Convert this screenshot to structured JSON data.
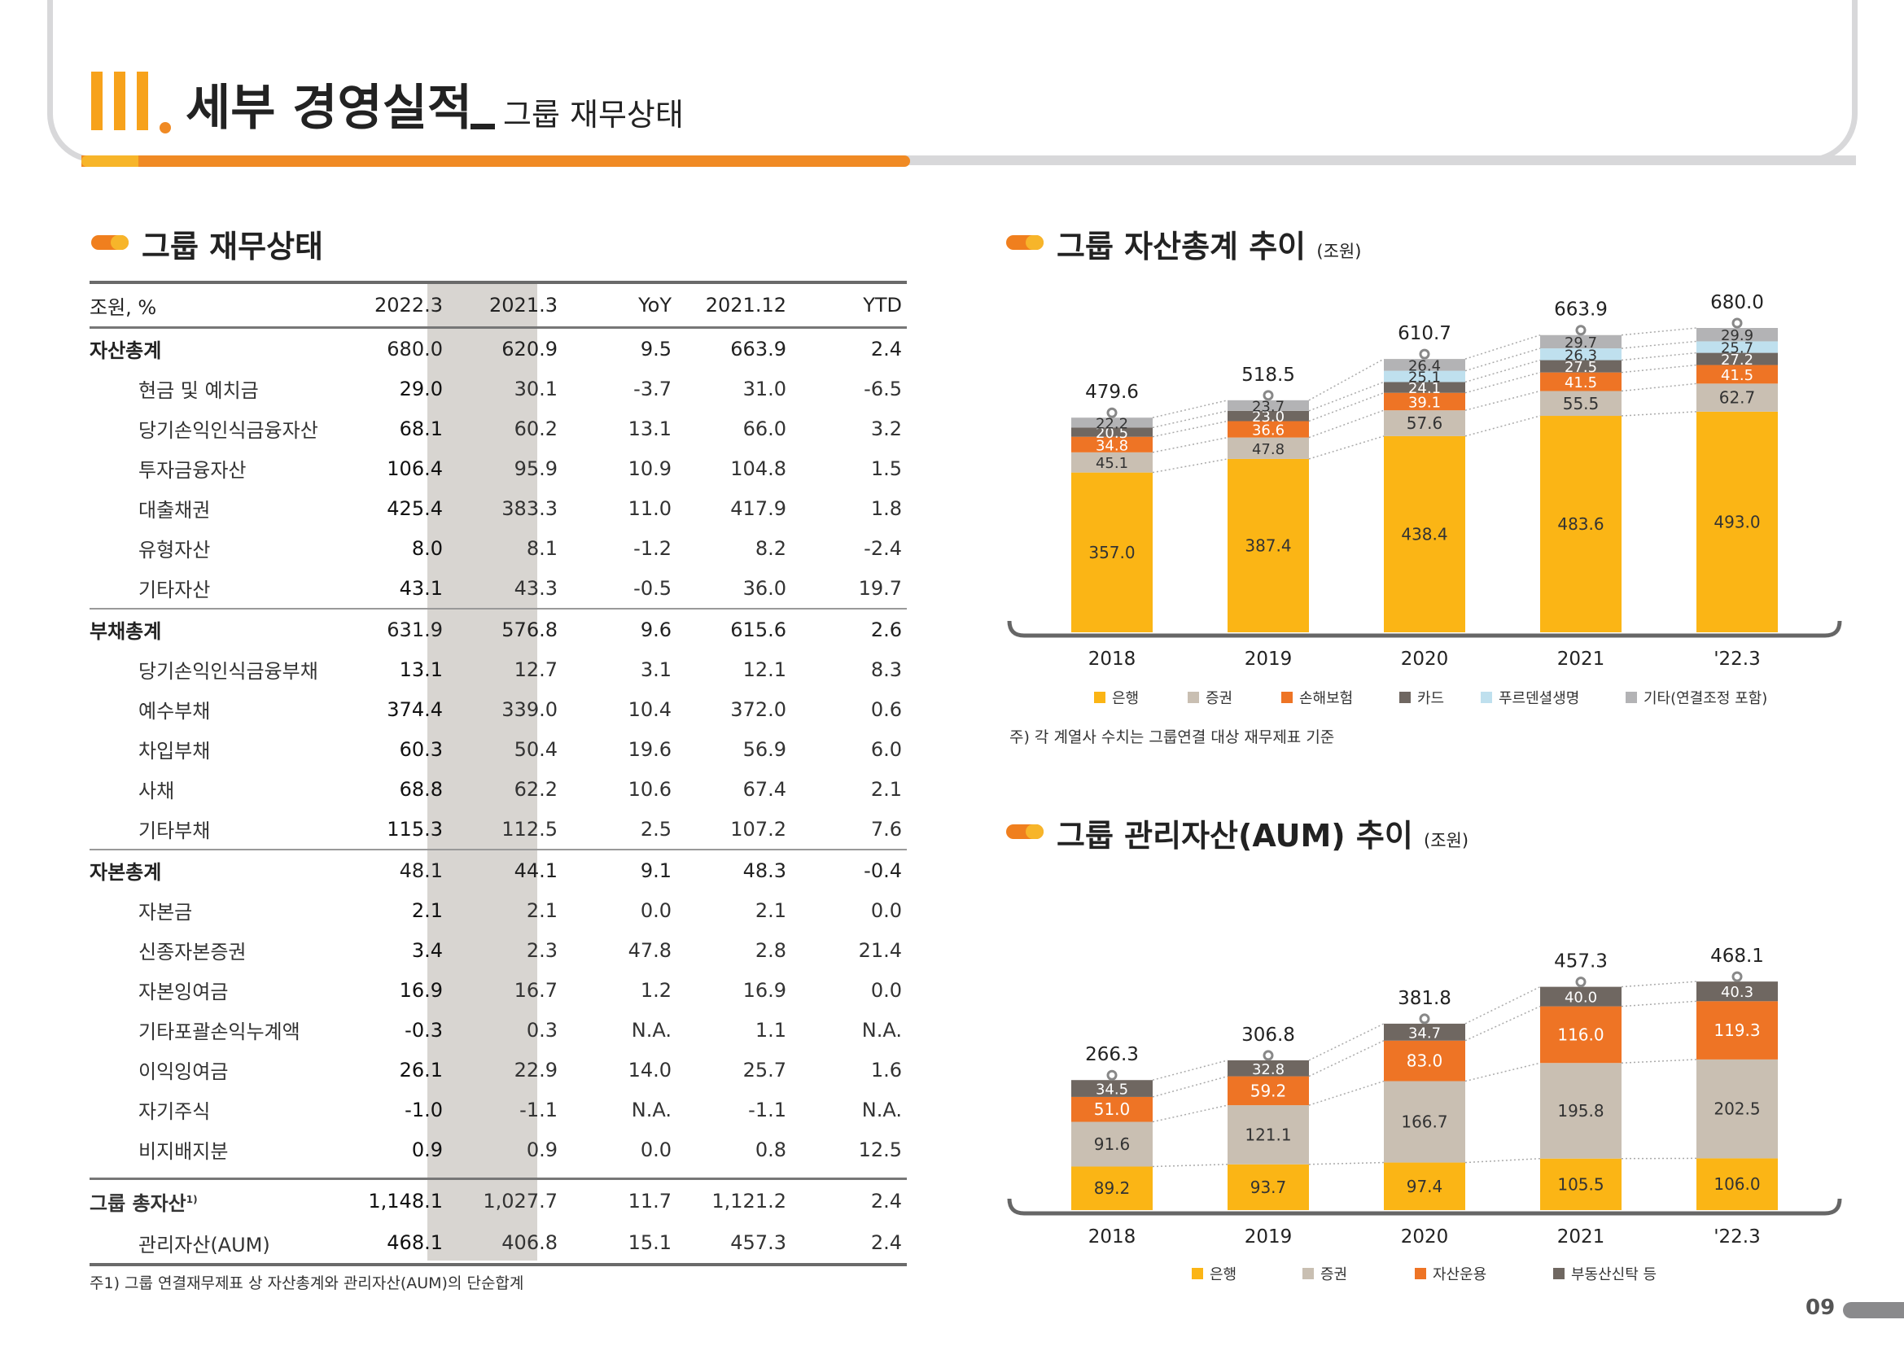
{
  "header": {
    "title_main": "세부 경영실적",
    "title_sub": "그룹 재무상태"
  },
  "table_section": {
    "title": "그룹 재무상태",
    "columns": [
      "조원, %",
      "2022.3",
      "2021.3",
      "YoY",
      "2021.12",
      "YTD"
    ],
    "rows": [
      {
        "label": "자산총계",
        "type": "total",
        "values": [
          "680.0",
          "620.9",
          "9.5",
          "663.9",
          "2.4"
        ]
      },
      {
        "label": "현금 및 예치금",
        "type": "sub",
        "values": [
          "29.0",
          "30.1",
          "-3.7",
          "31.0",
          "-6.5"
        ]
      },
      {
        "label": "당기손익인식금융자산",
        "type": "sub",
        "values": [
          "68.1",
          "60.2",
          "13.1",
          "66.0",
          "3.2"
        ]
      },
      {
        "label": "투자금융자산",
        "type": "sub",
        "values": [
          "106.4",
          "95.9",
          "10.9",
          "104.8",
          "1.5"
        ]
      },
      {
        "label": "대출채권",
        "type": "sub",
        "values": [
          "425.4",
          "383.3",
          "11.0",
          "417.9",
          "1.8"
        ]
      },
      {
        "label": "유형자산",
        "type": "sub",
        "values": [
          "8.0",
          "8.1",
          "-1.2",
          "8.2",
          "-2.4"
        ]
      },
      {
        "label": "기타자산",
        "type": "sub",
        "values": [
          "43.1",
          "43.3",
          "-0.5",
          "36.0",
          "19.7"
        ]
      },
      {
        "label": "부채총계",
        "type": "total",
        "values": [
          "631.9",
          "576.8",
          "9.6",
          "615.6",
          "2.6"
        ]
      },
      {
        "label": "당기손익인식금융부채",
        "type": "sub",
        "values": [
          "13.1",
          "12.7",
          "3.1",
          "12.1",
          "8.3"
        ]
      },
      {
        "label": "예수부채",
        "type": "sub",
        "values": [
          "374.4",
          "339.0",
          "10.4",
          "372.0",
          "0.6"
        ]
      },
      {
        "label": "차입부채",
        "type": "sub",
        "values": [
          "60.3",
          "50.4",
          "19.6",
          "56.9",
          "6.0"
        ]
      },
      {
        "label": "사채",
        "type": "sub",
        "values": [
          "68.8",
          "62.2",
          "10.6",
          "67.4",
          "2.1"
        ]
      },
      {
        "label": "기타부채",
        "type": "sub",
        "values": [
          "115.3",
          "112.5",
          "2.5",
          "107.2",
          "7.6"
        ]
      },
      {
        "label": "자본총계",
        "type": "total",
        "values": [
          "48.1",
          "44.1",
          "9.1",
          "48.3",
          "-0.4"
        ]
      },
      {
        "label": "자본금",
        "type": "sub",
        "values": [
          "2.1",
          "2.1",
          "0.0",
          "2.1",
          "0.0"
        ]
      },
      {
        "label": "신종자본증권",
        "type": "sub",
        "values": [
          "3.4",
          "2.3",
          "47.8",
          "2.8",
          "21.4"
        ]
      },
      {
        "label": "자본잉여금",
        "type": "sub",
        "values": [
          "16.9",
          "16.7",
          "1.2",
          "16.9",
          "0.0"
        ]
      },
      {
        "label": "기타포괄손익누계액",
        "type": "sub",
        "values": [
          "-0.3",
          "0.3",
          "N.A.",
          "1.1",
          "N.A."
        ]
      },
      {
        "label": "이익잉여금",
        "type": "sub",
        "values": [
          "26.1",
          "22.9",
          "14.0",
          "25.7",
          "1.6"
        ]
      },
      {
        "label": "자기주식",
        "type": "sub",
        "values": [
          "-1.0",
          "-1.1",
          "N.A.",
          "-1.1",
          "N.A."
        ]
      },
      {
        "label": "비지배지분",
        "type": "sub",
        "values": [
          "0.9",
          "0.9",
          "0.0",
          "0.8",
          "12.5"
        ]
      }
    ],
    "footer_rows": [
      {
        "label": "그룹 총자산",
        "sup": "1)",
        "values": [
          "1,148.1",
          "1,027.7",
          "11.7",
          "1,121.2",
          "2.4"
        ]
      },
      {
        "label": "관리자산(AUM)",
        "values": [
          "468.1",
          "406.8",
          "15.1",
          "457.3",
          "2.4"
        ]
      }
    ],
    "note": "주1) 그룹 연결재무제표 상 자산총계와 관리자산(AUM)의 단순합계"
  },
  "chart_data": [
    {
      "type": "bar",
      "stacked": true,
      "title": "그룹 자산총계 추이",
      "unit": "(조원)",
      "categories": [
        "2018",
        "2019",
        "2020",
        "2021",
        "'22.3"
      ],
      "totals": [
        "479.6",
        "518.5",
        "610.7",
        "663.9",
        "680.0"
      ],
      "ylim": [
        0,
        700
      ],
      "series": [
        {
          "name": "은행",
          "color": "#fbb515",
          "values": [
            357.0,
            387.4,
            438.4,
            483.6,
            493.0
          ]
        },
        {
          "name": "증권",
          "color": "#c9bfb2",
          "values": [
            45.1,
            47.8,
            57.6,
            55.5,
            62.7
          ]
        },
        {
          "name": "손해보험",
          "color": "#ee7425",
          "values": [
            34.8,
            36.6,
            39.1,
            41.5,
            41.5
          ]
        },
        {
          "name": "카드",
          "color": "#6f6761",
          "values": [
            20.5,
            23.0,
            24.1,
            27.5,
            27.2
          ]
        },
        {
          "name": "푸르덴셜생명",
          "color": "#bfe0ee",
          "values": [
            0,
            0,
            25.1,
            26.3,
            25.7
          ]
        },
        {
          "name": "기타(연결조정 포함)",
          "color": "#b3b3b5",
          "values": [
            22.2,
            23.7,
            26.4,
            29.7,
            29.9
          ]
        }
      ],
      "legend": "bottom",
      "note": "주) 각 계열사 수치는 그룹연결 대상 재무제표 기준"
    },
    {
      "type": "bar",
      "stacked": true,
      "title": "그룹 관리자산(AUM) 추이",
      "unit": "(조원)",
      "categories": [
        "2018",
        "2019",
        "2020",
        "2021",
        "'22.3"
      ],
      "totals": [
        "266.3",
        "306.8",
        "381.8",
        "457.3",
        "468.1"
      ],
      "ylim": [
        0,
        500
      ],
      "series": [
        {
          "name": "은행",
          "color": "#fbb515",
          "values": [
            89.2,
            93.7,
            97.4,
            105.5,
            106.0
          ]
        },
        {
          "name": "증권",
          "color": "#c9bfb2",
          "values": [
            91.6,
            121.1,
            166.7,
            195.8,
            202.5
          ]
        },
        {
          "name": "자산운용",
          "color": "#ee7425",
          "values": [
            51.0,
            59.2,
            83.0,
            116.0,
            119.3
          ]
        },
        {
          "name": "부동산신탁 등",
          "color": "#6f6761",
          "values": [
            34.5,
            32.8,
            34.7,
            40.0,
            40.3
          ]
        }
      ],
      "legend": "bottom"
    }
  ],
  "page_number": "09"
}
